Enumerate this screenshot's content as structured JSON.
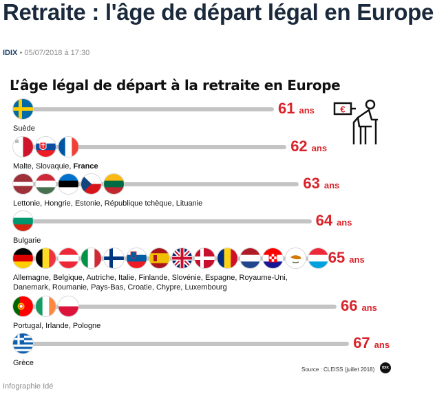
{
  "article": {
    "title": "Retraite : l'âge de départ légal en Europe",
    "author": "IDIX",
    "date": "05/07/2018 à 17:30",
    "credit": "Infographie Idé"
  },
  "chart_data": {
    "type": "bar",
    "title": "L’âge légal de départ à la retraite en Europe",
    "unit": "ans",
    "source": "Source : CLEISS (juillet 2018)",
    "logo_text": "IDIX",
    "rows": [
      {
        "value": 61,
        "value_label": "61",
        "countries": [
          "Suède"
        ],
        "flags": [
          "se"
        ]
      },
      {
        "value": 62,
        "value_label": "62",
        "countries": [
          "Malte",
          "Slovaquie",
          "France"
        ],
        "highlight": "France",
        "flags": [
          "mt",
          "sk",
          "fr"
        ]
      },
      {
        "value": 63,
        "value_label": "63",
        "countries": [
          "Lettonie",
          "Hongrie",
          "Estonie",
          "République tchèque",
          "Lituanie"
        ],
        "flags": [
          "lv",
          "hu",
          "ee",
          "cz",
          "lt"
        ]
      },
      {
        "value": 64,
        "value_label": "64",
        "countries": [
          "Bulgarie"
        ],
        "flags": [
          "bg"
        ]
      },
      {
        "value": 65,
        "value_label": "65",
        "countries": [
          "Allemagne",
          "Belgique",
          "Autriche",
          "Italie",
          "Finlande",
          "Slovénie",
          "Espagne",
          "Royaume-Uni",
          "Danemark",
          "Roumanie",
          "Pays-Bas",
          "Croatie",
          "Chypre",
          "Luxembourg"
        ],
        "flags": [
          "de",
          "be",
          "at",
          "it",
          "fi",
          "si",
          "es",
          "gb",
          "dk",
          "ro",
          "nl",
          "hr",
          "cy",
          "lu"
        ]
      },
      {
        "value": 66,
        "value_label": "66",
        "countries": [
          "Portugal",
          "Irlande",
          "Pologne"
        ],
        "flags": [
          "pt",
          "ie",
          "pl"
        ]
      },
      {
        "value": 67,
        "value_label": "67",
        "countries": [
          "Grèce"
        ],
        "flags": [
          "gr"
        ]
      }
    ]
  },
  "icon": {
    "name": "retiree-with-euro-sign-icon",
    "euro_symbol": "€"
  },
  "colors": {
    "value": "#d8232a",
    "bar": "#c4c4c4",
    "title": "#1a2a3c",
    "author": "#1a3f6b"
  }
}
